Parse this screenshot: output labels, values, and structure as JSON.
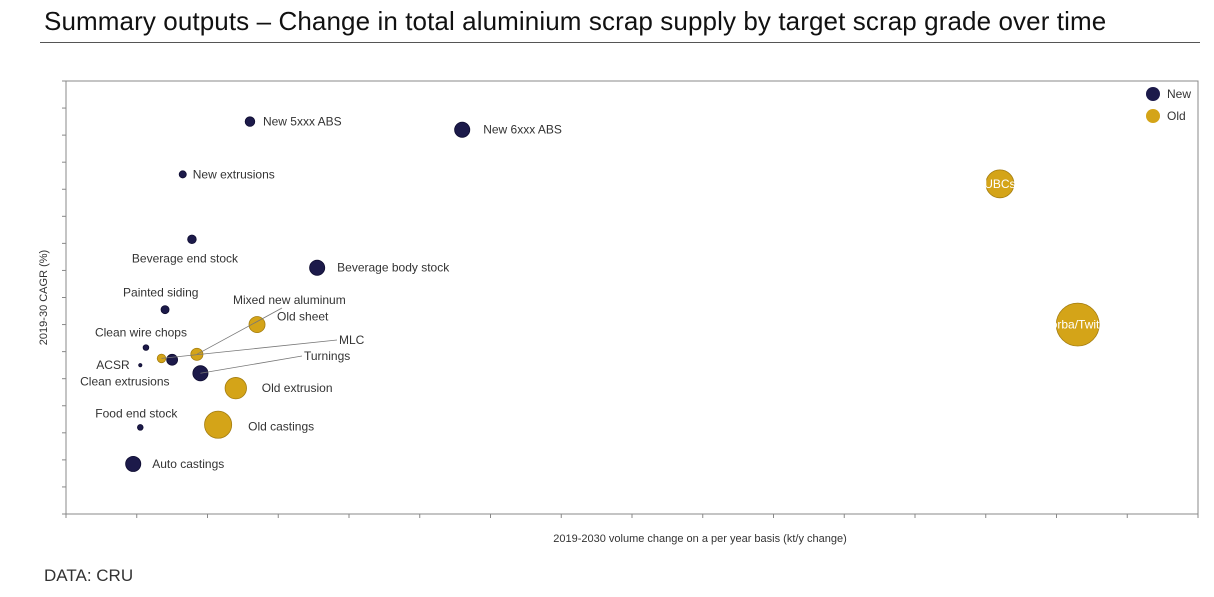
{
  "page": {
    "title": "Summary outputs – Change in total aluminium scrap supply by target scrap grade over time",
    "source": "DATA: CRU"
  },
  "chart_data": {
    "type": "scatter",
    "subtype": "bubble",
    "title": "",
    "xlabel": "2019-2030 volume change on a per year basis (kt/y change)",
    "ylabel": "2019-30 CAGR (%)",
    "x_tick_labels_shown": false,
    "y_tick_labels_shown": false,
    "xlim": [
      0,
      16
    ],
    "ylim": [
      0,
      16
    ],
    "legend": {
      "placement": "top-right"
    },
    "series": [
      {
        "name": "New",
        "color": "#1c1a4a",
        "points": [
          {
            "label": "New 5xxx ABS",
            "x": 2.6,
            "y": 14.5,
            "size": 1.0
          },
          {
            "label": "New 6xxx ABS",
            "x": 5.6,
            "y": 14.2,
            "size": 2.5
          },
          {
            "label": "New extrusions",
            "x": 1.65,
            "y": 12.55,
            "size": 0.55
          },
          {
            "label": "Beverage end stock",
            "x": 1.78,
            "y": 10.15,
            "size": 0.8
          },
          {
            "label": "Beverage body stock",
            "x": 3.55,
            "y": 9.1,
            "size": 2.5
          },
          {
            "label": "Painted siding",
            "x": 1.4,
            "y": 7.55,
            "size": 0.7
          },
          {
            "label": "Clean wire chops",
            "x": 1.13,
            "y": 6.15,
            "size": 0.35
          },
          {
            "label": "ACSR",
            "x": 1.05,
            "y": 5.5,
            "size": 0.12
          },
          {
            "label": "Clean extrusions",
            "x": 1.5,
            "y": 5.7,
            "size": 1.3
          },
          {
            "label": "Turnings",
            "x": 1.9,
            "y": 5.2,
            "size": 2.5
          },
          {
            "label": "Food end stock",
            "x": 1.05,
            "y": 3.2,
            "size": 0.35
          },
          {
            "label": "Auto castings",
            "x": 0.95,
            "y": 1.85,
            "size": 2.5
          }
        ]
      },
      {
        "name": "Old",
        "color": "#d4a418",
        "points": [
          {
            "label": "UBCs",
            "x": 13.2,
            "y": 12.2,
            "size": 8.5
          },
          {
            "label": "Zorba/Twitch",
            "x": 14.3,
            "y": 7.0,
            "size": 20.0
          },
          {
            "label": "Old sheet",
            "x": 2.7,
            "y": 7.0,
            "size": 2.8
          },
          {
            "label": "Mixed new aluminum",
            "x": 1.85,
            "y": 5.9,
            "size": 1.6
          },
          {
            "label": "MLC",
            "x": 1.35,
            "y": 5.75,
            "size": 0.8
          },
          {
            "label": "Old extrusion",
            "x": 2.4,
            "y": 4.65,
            "size": 5.0
          },
          {
            "label": "Old castings",
            "x": 2.15,
            "y": 3.3,
            "size": 8.0
          }
        ]
      }
    ]
  }
}
